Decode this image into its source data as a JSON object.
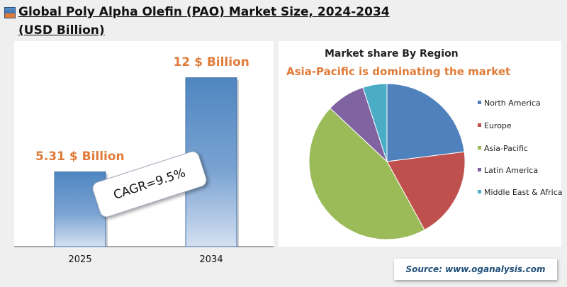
{
  "title": "Global Poly Alpha Olefin (PAO) Market Size, 2024-2034 (USD Billion)",
  "colors": {
    "bar": "#4f86c0",
    "label": "#e07b39",
    "north_america": "#4f81bd",
    "europe": "#c0504d",
    "asia_pacific": "#9bbb59",
    "latin_america": "#8064a2",
    "middle_east_africa": "#4bacc6"
  },
  "chart_data": [
    {
      "type": "bar",
      "categories": [
        "2025",
        "2034"
      ],
      "values": [
        5.31,
        12
      ],
      "data_labels": [
        "5.31 $ Billion",
        "12 $ Billion"
      ],
      "ylim": [
        0,
        14
      ],
      "annotation": "CAGR=9.5%",
      "grid": false
    },
    {
      "type": "pie",
      "title": "Market share By Region",
      "subtitle": "Asia-Pacific is dominating the market",
      "labels": [
        "North America",
        "Europe",
        "Asia-Pacific",
        "Latin America",
        "Middle East & Africa"
      ],
      "values": [
        23,
        19,
        45,
        8,
        5
      ],
      "legend": "right"
    }
  ],
  "source": "Source: www.oganalysis.com"
}
